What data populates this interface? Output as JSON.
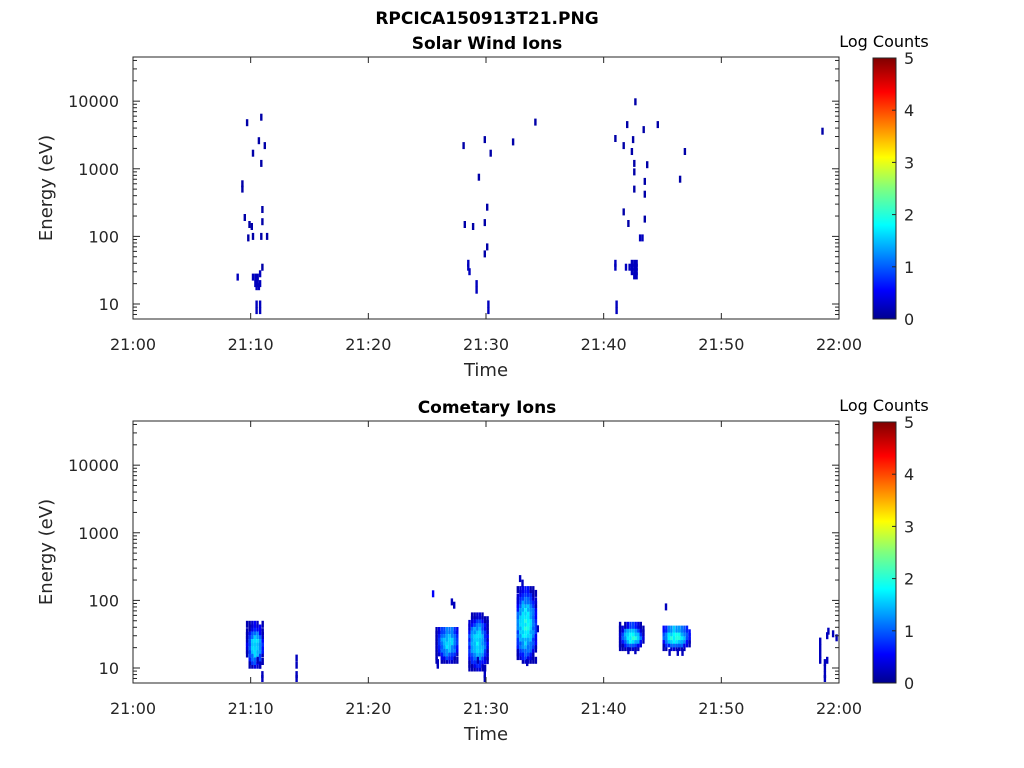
{
  "figure": {
    "title": "RPCICA150913T21.PNG"
  },
  "chart_data": [
    {
      "type": "heatmap",
      "title": "Solar Wind Ions",
      "xlabel": "Time",
      "ylabel": "Energy (eV)",
      "x_ticks": [
        "21:00",
        "21:10",
        "21:20",
        "21:30",
        "21:40",
        "21:50",
        "22:00"
      ],
      "y_ticks": [
        {
          "value": 10,
          "label": "10"
        },
        {
          "value": 100,
          "label": "100"
        },
        {
          "value": 1000,
          "label": "1000"
        },
        {
          "value": 10000,
          "label": "10000"
        }
      ],
      "y_scale": "log",
      "xlim_minutes": [
        0,
        60
      ],
      "ylim": [
        6,
        45000
      ],
      "grid": false,
      "colorbar": {
        "label": "Log Counts",
        "min": 0,
        "max": 5,
        "ticks": [
          "0",
          "1",
          "2",
          "3",
          "4",
          "5"
        ],
        "colormap": "jet"
      },
      "cells": [
        {
          "t": 8.9,
          "e": 25,
          "c": 0.3
        },
        {
          "t": 9.3,
          "e": 600,
          "c": 0.2
        },
        {
          "t": 9.3,
          "e": 500,
          "c": 0.2
        },
        {
          "t": 9.5,
          "e": 190,
          "c": 0.2
        },
        {
          "t": 9.7,
          "e": 4800,
          "c": 0.2
        },
        {
          "t": 9.8,
          "e": 95,
          "c": 0.2
        },
        {
          "t": 9.9,
          "e": 150,
          "c": 0.2
        },
        {
          "t": 10.1,
          "e": 140,
          "c": 0.2
        },
        {
          "t": 10.2,
          "e": 100,
          "c": 0.2
        },
        {
          "t": 10.2,
          "e": 1700,
          "c": 0.2
        },
        {
          "t": 10.2,
          "e": 25,
          "c": 0.3
        },
        {
          "t": 10.4,
          "e": 25,
          "c": 0.3
        },
        {
          "t": 10.6,
          "e": 25,
          "c": 0.3
        },
        {
          "t": 10.4,
          "e": 20,
          "c": 0.3
        },
        {
          "t": 10.6,
          "e": 20,
          "c": 0.3
        },
        {
          "t": 10.8,
          "e": 20,
          "c": 0.3
        },
        {
          "t": 10.5,
          "e": 18,
          "c": 0.3
        },
        {
          "t": 10.7,
          "e": 18,
          "c": 0.3
        },
        {
          "t": 10.8,
          "e": 28,
          "c": 0.3
        },
        {
          "t": 10.5,
          "e": 10,
          "c": 0.3
        },
        {
          "t": 10.5,
          "e": 8,
          "c": 0.3
        },
        {
          "t": 10.8,
          "e": 10,
          "c": 0.3
        },
        {
          "t": 10.8,
          "e": 8,
          "c": 0.3
        },
        {
          "t": 10.7,
          "e": 2600,
          "c": 0.2
        },
        {
          "t": 10.9,
          "e": 5800,
          "c": 0.2
        },
        {
          "t": 10.9,
          "e": 1200,
          "c": 0.2
        },
        {
          "t": 10.9,
          "e": 100,
          "c": 0.2
        },
        {
          "t": 11.0,
          "e": 250,
          "c": 0.2
        },
        {
          "t": 11.0,
          "e": 165,
          "c": 0.2
        },
        {
          "t": 11.0,
          "e": 35,
          "c": 0.2
        },
        {
          "t": 11.2,
          "e": 2200,
          "c": 0.2
        },
        {
          "t": 11.4,
          "e": 100,
          "c": 0.2
        },
        {
          "t": 28.1,
          "e": 2200,
          "c": 0.2
        },
        {
          "t": 28.2,
          "e": 150,
          "c": 0.2
        },
        {
          "t": 28.5,
          "e": 40,
          "c": 0.3
        },
        {
          "t": 28.5,
          "e": 35,
          "c": 0.3
        },
        {
          "t": 28.6,
          "e": 30,
          "c": 0.3
        },
        {
          "t": 28.9,
          "e": 140,
          "c": 0.2
        },
        {
          "t": 29.2,
          "e": 20,
          "c": 0.3
        },
        {
          "t": 29.2,
          "e": 16,
          "c": 0.3
        },
        {
          "t": 29.4,
          "e": 750,
          "c": 0.2
        },
        {
          "t": 29.9,
          "e": 2700,
          "c": 0.2
        },
        {
          "t": 29.9,
          "e": 160,
          "c": 0.2
        },
        {
          "t": 29.9,
          "e": 55,
          "c": 0.2
        },
        {
          "t": 30.1,
          "e": 270,
          "c": 0.2
        },
        {
          "t": 30.1,
          "e": 70,
          "c": 0.2
        },
        {
          "t": 30.2,
          "e": 10,
          "c": 0.3
        },
        {
          "t": 30.2,
          "e": 8,
          "c": 0.3
        },
        {
          "t": 30.4,
          "e": 1700,
          "c": 0.2
        },
        {
          "t": 32.3,
          "e": 2500,
          "c": 0.2
        },
        {
          "t": 34.2,
          "e": 4900,
          "c": 0.2
        },
        {
          "t": 41.0,
          "e": 2800,
          "c": 0.2
        },
        {
          "t": 41.0,
          "e": 40,
          "c": 0.3
        },
        {
          "t": 41.0,
          "e": 35,
          "c": 0.3
        },
        {
          "t": 41.1,
          "e": 10,
          "c": 0.3
        },
        {
          "t": 41.1,
          "e": 8,
          "c": 0.3
        },
        {
          "t": 41.7,
          "e": 2200,
          "c": 0.2
        },
        {
          "t": 41.7,
          "e": 230,
          "c": 0.2
        },
        {
          "t": 41.9,
          "e": 35,
          "c": 0.3
        },
        {
          "t": 42.0,
          "e": 4500,
          "c": 0.2
        },
        {
          "t": 42.1,
          "e": 155,
          "c": 0.2
        },
        {
          "t": 42.2,
          "e": 35,
          "c": 0.3
        },
        {
          "t": 42.4,
          "e": 35,
          "c": 0.3
        },
        {
          "t": 42.4,
          "e": 40,
          "c": 0.3
        },
        {
          "t": 42.6,
          "e": 40,
          "c": 0.3
        },
        {
          "t": 42.8,
          "e": 40,
          "c": 0.3
        },
        {
          "t": 42.4,
          "e": 30,
          "c": 0.3
        },
        {
          "t": 42.6,
          "e": 30,
          "c": 0.3
        },
        {
          "t": 42.8,
          "e": 30,
          "c": 0.3
        },
        {
          "t": 42.6,
          "e": 35,
          "c": 0.3
        },
        {
          "t": 42.8,
          "e": 35,
          "c": 0.3
        },
        {
          "t": 42.6,
          "e": 26,
          "c": 0.3
        },
        {
          "t": 42.8,
          "e": 26,
          "c": 0.3
        },
        {
          "t": 42.4,
          "e": 1800,
          "c": 0.2
        },
        {
          "t": 42.5,
          "e": 2700,
          "c": 0.2
        },
        {
          "t": 42.6,
          "e": 1200,
          "c": 0.2
        },
        {
          "t": 42.6,
          "e": 900,
          "c": 0.2
        },
        {
          "t": 42.6,
          "e": 500,
          "c": 0.2
        },
        {
          "t": 42.7,
          "e": 9800,
          "c": 0.2
        },
        {
          "t": 43.1,
          "e": 95,
          "c": 0.3
        },
        {
          "t": 43.3,
          "e": 95,
          "c": 0.3
        },
        {
          "t": 43.4,
          "e": 3800,
          "c": 0.2
        },
        {
          "t": 43.5,
          "e": 650,
          "c": 0.2
        },
        {
          "t": 43.5,
          "e": 420,
          "c": 0.2
        },
        {
          "t": 43.7,
          "e": 1150,
          "c": 0.2
        },
        {
          "t": 43.5,
          "e": 180,
          "c": 0.2
        },
        {
          "t": 44.6,
          "e": 4500,
          "c": 0.2
        },
        {
          "t": 46.5,
          "e": 700,
          "c": 0.2
        },
        {
          "t": 46.9,
          "e": 1800,
          "c": 0.2
        },
        {
          "t": 58.6,
          "e": 3600,
          "c": 0.2
        }
      ]
    },
    {
      "type": "heatmap",
      "title": "Cometary Ions",
      "xlabel": "Time",
      "ylabel": "Energy (eV)",
      "x_ticks": [
        "21:00",
        "21:10",
        "21:20",
        "21:30",
        "21:40",
        "21:50",
        "22:00"
      ],
      "y_ticks": [
        {
          "value": 10,
          "label": "10"
        },
        {
          "value": 100,
          "label": "100"
        },
        {
          "value": 1000,
          "label": "1000"
        },
        {
          "value": 10000,
          "label": "10000"
        }
      ],
      "y_scale": "log",
      "xlim_minutes": [
        0,
        60
      ],
      "ylim": [
        6,
        45000
      ],
      "grid": false,
      "colorbar": {
        "label": "Log Counts",
        "min": 0,
        "max": 5,
        "ticks": [
          "0",
          "1",
          "2",
          "3",
          "4",
          "5"
        ],
        "colormap": "jet"
      },
      "bursts": [
        {
          "t0": 9.7,
          "t1": 11.1,
          "e0": 11,
          "e1": 45,
          "peak": 1.8,
          "tc": 10.4,
          "ec": 22
        },
        {
          "t0": 25.8,
          "t1": 27.6,
          "e0": 13,
          "e1": 40,
          "peak": 1.7,
          "tc": 26.8,
          "ec": 25
        },
        {
          "t0": 28.6,
          "t1": 30.2,
          "e0": 10,
          "e1": 60,
          "peak": 1.8,
          "tc": 29.3,
          "ec": 25
        },
        {
          "t0": 32.7,
          "t1": 34.4,
          "e0": 13,
          "e1": 160,
          "peak": 1.9,
          "tc": 33.4,
          "ec": 45
        },
        {
          "t0": 41.4,
          "t1": 43.4,
          "e0": 20,
          "e1": 45,
          "peak": 2.0,
          "tc": 42.4,
          "ec": 30
        },
        {
          "t0": 45.1,
          "t1": 47.4,
          "e0": 20,
          "e1": 42,
          "peak": 2.0,
          "tc": 46.1,
          "ec": 30
        }
      ],
      "cells": [
        {
          "t": 10.6,
          "e": 13,
          "c": 0.3
        },
        {
          "t": 10.8,
          "e": 11,
          "c": 0.3
        },
        {
          "t": 11.0,
          "e": 8,
          "c": 0.3
        },
        {
          "t": 11.0,
          "e": 7,
          "c": 0.3
        },
        {
          "t": 13.9,
          "e": 14,
          "c": 0.3
        },
        {
          "t": 13.9,
          "e": 11,
          "c": 0.3
        },
        {
          "t": 13.9,
          "e": 8,
          "c": 0.3
        },
        {
          "t": 13.9,
          "e": 7,
          "c": 0.3
        },
        {
          "t": 25.5,
          "e": 125,
          "c": 0.6
        },
        {
          "t": 25.9,
          "e": 12,
          "c": 0.3
        },
        {
          "t": 25.9,
          "e": 11,
          "c": 0.3
        },
        {
          "t": 27.1,
          "e": 95,
          "c": 0.3
        },
        {
          "t": 27.3,
          "e": 85,
          "c": 0.3
        },
        {
          "t": 29.3,
          "e": 13,
          "c": 0.3
        },
        {
          "t": 29.8,
          "e": 10,
          "c": 0.3
        },
        {
          "t": 29.9,
          "e": 8,
          "c": 0.3
        },
        {
          "t": 29.9,
          "e": 7,
          "c": 0.3
        },
        {
          "t": 32.9,
          "e": 210,
          "c": 0.3
        },
        {
          "t": 33.1,
          "e": 180,
          "c": 0.3
        },
        {
          "t": 33.5,
          "e": 12,
          "c": 0.3
        },
        {
          "t": 34.4,
          "e": 38,
          "c": 0.3
        },
        {
          "t": 42.1,
          "e": 18,
          "c": 0.3
        },
        {
          "t": 42.7,
          "e": 18,
          "c": 0.3
        },
        {
          "t": 45.3,
          "e": 80,
          "c": 0.3
        },
        {
          "t": 45.6,
          "e": 17,
          "c": 0.3
        },
        {
          "t": 46.3,
          "e": 17,
          "c": 0.3
        },
        {
          "t": 46.7,
          "e": 17,
          "c": 0.3
        },
        {
          "t": 58.4,
          "e": 25,
          "c": 0.3
        },
        {
          "t": 58.4,
          "e": 20,
          "c": 0.3
        },
        {
          "t": 58.4,
          "e": 16,
          "c": 0.3
        },
        {
          "t": 58.4,
          "e": 13,
          "c": 0.3
        },
        {
          "t": 58.8,
          "e": 12,
          "c": 0.3
        },
        {
          "t": 58.8,
          "e": 10,
          "c": 0.3
        },
        {
          "t": 58.8,
          "e": 8,
          "c": 0.3
        },
        {
          "t": 58.8,
          "e": 7,
          "c": 0.3
        },
        {
          "t": 59.0,
          "e": 30,
          "c": 0.3
        },
        {
          "t": 59.0,
          "e": 13,
          "c": 0.3
        },
        {
          "t": 59.1,
          "e": 35,
          "c": 0.3
        },
        {
          "t": 59.5,
          "e": 32,
          "c": 0.3
        },
        {
          "t": 59.8,
          "e": 28,
          "c": 0.3
        }
      ]
    }
  ]
}
